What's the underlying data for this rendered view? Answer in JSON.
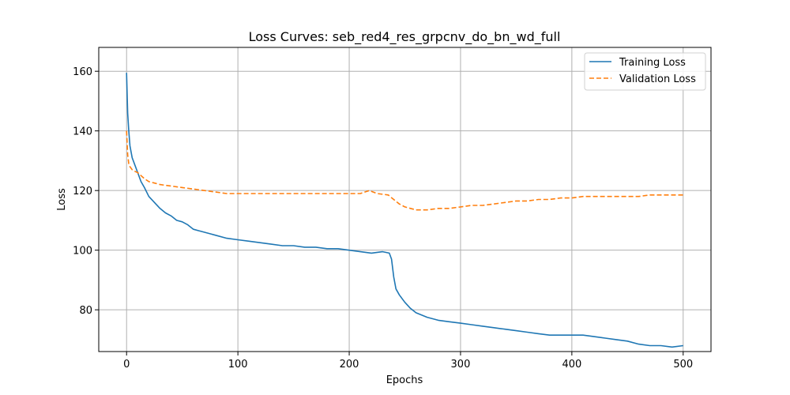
{
  "chart_data": {
    "type": "line",
    "title": "Loss Curves: seb_red4_res_grpcnv_do_bn_wd_full",
    "xlabel": "Epochs",
    "ylabel": "Loss",
    "xlim": [
      -25,
      525
    ],
    "ylim": [
      66,
      168
    ],
    "xticks": [
      0,
      100,
      200,
      300,
      400,
      500
    ],
    "yticks": [
      80,
      100,
      120,
      140,
      160
    ],
    "grid": true,
    "legend": "top-right",
    "series": [
      {
        "name": "Training Loss",
        "color": "#1f77b4",
        "style": "solid",
        "x": [
          0,
          1,
          2,
          3,
          5,
          7,
          10,
          13,
          16,
          20,
          25,
          30,
          35,
          40,
          45,
          50,
          55,
          60,
          65,
          70,
          75,
          80,
          90,
          100,
          110,
          120,
          130,
          140,
          150,
          160,
          170,
          180,
          190,
          200,
          210,
          220,
          230,
          236,
          238,
          240,
          242,
          245,
          250,
          255,
          260,
          270,
          280,
          290,
          300,
          310,
          320,
          330,
          340,
          350,
          360,
          370,
          380,
          390,
          400,
          410,
          420,
          430,
          440,
          450,
          460,
          470,
          480,
          490,
          500
        ],
        "y": [
          159.5,
          146,
          140,
          135,
          131,
          129,
          126,
          123,
          121,
          118,
          116,
          114,
          112.5,
          111.5,
          110,
          109.5,
          108.5,
          107,
          106.5,
          106,
          105.5,
          105,
          104,
          103.5,
          103,
          102.5,
          102,
          101.5,
          101.5,
          101,
          101,
          100.5,
          100.5,
          100,
          99.5,
          99,
          99.5,
          99,
          97,
          91,
          87,
          85,
          82.5,
          80.5,
          79,
          77.5,
          76.5,
          76,
          75.5,
          75,
          74.5,
          74,
          73.5,
          73,
          72.5,
          72,
          71.5,
          71.5,
          71.5,
          71.5,
          71,
          70.5,
          70,
          69.5,
          68.5,
          68,
          68,
          67.5,
          68
        ]
      },
      {
        "name": "Validation Loss",
        "color": "#ff7f0e",
        "style": "dashed",
        "x": [
          0,
          1,
          2,
          3,
          5,
          7,
          10,
          13,
          16,
          20,
          25,
          30,
          40,
          50,
          60,
          70,
          80,
          90,
          100,
          110,
          120,
          130,
          140,
          150,
          160,
          170,
          180,
          190,
          200,
          210,
          218,
          225,
          235,
          240,
          245,
          250,
          255,
          260,
          270,
          280,
          290,
          300,
          310,
          320,
          330,
          340,
          350,
          360,
          370,
          380,
          390,
          400,
          410,
          420,
          430,
          440,
          450,
          460,
          470,
          480,
          490,
          500
        ],
        "y": [
          140,
          132,
          129,
          128,
          127,
          126.5,
          126,
          125,
          124,
          123,
          122.5,
          122,
          121.5,
          121,
          120.5,
          120,
          119.5,
          119,
          119,
          119,
          119,
          119,
          119,
          119,
          119,
          119,
          119,
          119,
          119,
          119,
          120,
          119,
          118.5,
          117,
          115.5,
          114.5,
          114,
          113.5,
          113.5,
          114,
          114,
          114.5,
          115,
          115,
          115.5,
          116,
          116.5,
          116.5,
          117,
          117,
          117.5,
          117.5,
          118,
          118,
          118,
          118,
          118,
          118,
          118.5,
          118.5,
          118.5,
          118.5
        ]
      }
    ]
  }
}
